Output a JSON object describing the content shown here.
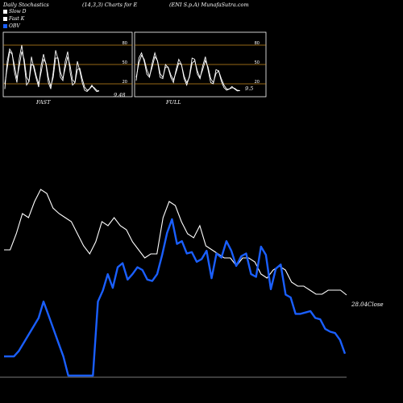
{
  "header": {
    "left": "Daily Stochastics",
    "center": "(14,3,3) Charts for E",
    "right": "(ENI S.p.A) MunafaSutra.com"
  },
  "legend": [
    {
      "label": "Slow D",
      "color": "#ffffff"
    },
    {
      "label": "Fast K",
      "color": "#ffffff"
    },
    {
      "label": "OBV",
      "color": "#1a5fff"
    }
  ],
  "colors": {
    "background": "#000000",
    "price": "#ffffff",
    "obv": "#1a5fff",
    "stoch_ref": "#c88a1e",
    "stoch_line": "#ffffff"
  },
  "chart_data": [
    {
      "type": "line",
      "panel": "FAST",
      "title": "FAST",
      "last_value_label": "9.48",
      "ylim": [
        0,
        100
      ],
      "yticks": [
        20,
        50,
        80
      ],
      "series": [
        {
          "values": [
            12,
            55,
            74,
            68,
            38,
            22,
            60,
            80,
            52,
            18,
            24,
            62,
            44,
            28,
            15,
            48,
            66,
            50,
            22,
            12,
            38,
            72,
            58,
            30,
            25,
            55,
            70,
            38,
            18,
            22,
            55,
            40,
            22,
            10,
            8,
            12,
            18,
            12,
            8,
            9
          ]
        },
        {
          "values": [
            20,
            45,
            70,
            66,
            48,
            28,
            48,
            70,
            58,
            30,
            24,
            50,
            48,
            32,
            20,
            38,
            58,
            52,
            30,
            16,
            30,
            60,
            60,
            38,
            28,
            45,
            62,
            48,
            26,
            22,
            42,
            44,
            28,
            15,
            10,
            12,
            16,
            14,
            10,
            9
          ]
        }
      ]
    },
    {
      "type": "line",
      "panel": "FULL",
      "title": "FULL",
      "last_value_label": "9.5",
      "ylim": [
        0,
        100
      ],
      "yticks": [
        20,
        50,
        80
      ],
      "series": [
        {
          "values": [
            25,
            60,
            68,
            55,
            35,
            30,
            52,
            68,
            55,
            30,
            28,
            50,
            45,
            30,
            22,
            42,
            58,
            50,
            28,
            18,
            32,
            60,
            58,
            35,
            28,
            48,
            62,
            42,
            22,
            20,
            42,
            40,
            24,
            14,
            10,
            12,
            16,
            12,
            9,
            9.5
          ]
        },
        {
          "values": [
            30,
            52,
            64,
            58,
            42,
            32,
            46,
            62,
            56,
            36,
            30,
            46,
            46,
            34,
            26,
            38,
            52,
            50,
            32,
            22,
            30,
            52,
            56,
            40,
            30,
            42,
            56,
            46,
            28,
            22,
            36,
            40,
            28,
            18,
            12,
            12,
            14,
            13,
            10,
            9.5
          ]
        }
      ]
    },
    {
      "type": "line",
      "panel": "main",
      "close_label": "28.04Close",
      "series": [
        {
          "name": "price",
          "values": [
            28.6,
            28.6,
            28.8,
            29.05,
            29.0,
            29.2,
            29.35,
            29.3,
            29.12,
            29.05,
            29.0,
            28.95,
            28.8,
            28.65,
            28.55,
            28.7,
            28.95,
            28.9,
            29.0,
            28.9,
            28.85,
            28.7,
            28.6,
            28.5,
            28.55,
            28.55,
            29.0,
            29.2,
            29.15,
            28.95,
            28.8,
            28.75,
            28.9,
            28.65,
            28.6,
            28.55,
            28.5,
            28.5,
            28.4,
            28.5,
            28.5,
            28.45,
            28.3,
            28.25,
            28.35,
            28.4,
            28.35,
            28.2,
            28.15,
            28.15,
            28.1,
            28.05,
            28.05,
            28.1,
            28.1,
            28.1,
            28.04
          ]
        },
        {
          "name": "OBV",
          "values": [
            10,
            10,
            10,
            14,
            20,
            26,
            32,
            38,
            50,
            40,
            30,
            20,
            10,
            -4,
            -4,
            -4,
            -4,
            -4,
            -4,
            50,
            58,
            70,
            60,
            75,
            78,
            66,
            70,
            75,
            73,
            66,
            65,
            70,
            84,
            100,
            110,
            92,
            94,
            85,
            86,
            79,
            81,
            87,
            67,
            85,
            82,
            94,
            87,
            76,
            83,
            85,
            70,
            68,
            90,
            84,
            59,
            74,
            77,
            55,
            53,
            41,
            41,
            42,
            43,
            38,
            37,
            30,
            28,
            27,
            22,
            12
          ]
        }
      ]
    }
  ]
}
